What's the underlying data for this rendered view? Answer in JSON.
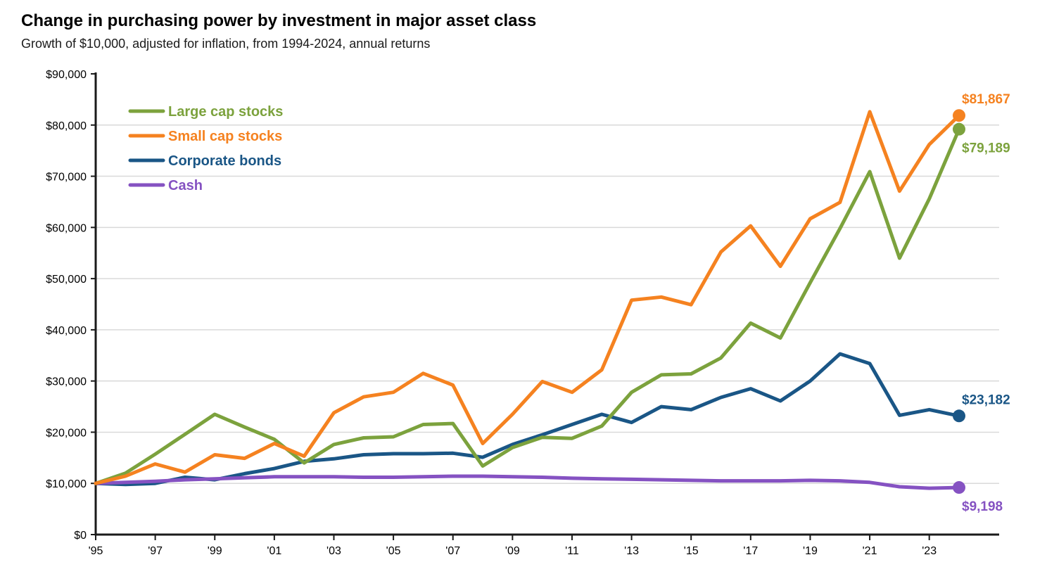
{
  "header": {
    "title": "Change in purchasing power by investment in major asset class",
    "subtitle": "Growth of $10,000, adjusted for inflation, from 1994-2024, annual returns"
  },
  "chart_data": {
    "type": "line",
    "title": "Change in purchasing power by investment in major asset class",
    "subtitle": "Growth of $10,000, adjusted for inflation, from 1994-2024, annual returns",
    "x": [
      1995,
      1996,
      1997,
      1998,
      1999,
      2000,
      2001,
      2002,
      2003,
      2004,
      2005,
      2006,
      2007,
      2008,
      2009,
      2010,
      2011,
      2012,
      2013,
      2014,
      2015,
      2016,
      2017,
      2018,
      2019,
      2020,
      2021,
      2022,
      2023,
      2024
    ],
    "x_tick_labels": [
      "'95",
      "'97",
      "'99",
      "'01",
      "'03",
      "'05",
      "'07",
      "'09",
      "'11",
      "'13",
      "'15",
      "'17",
      "'19",
      "'21",
      "'23"
    ],
    "x_tick_indices": [
      0,
      2,
      4,
      6,
      8,
      10,
      12,
      14,
      16,
      18,
      20,
      22,
      24,
      26,
      28
    ],
    "y_axis": {
      "min": 0,
      "max": 90000,
      "tick_step": 10000,
      "tick_labels": [
        "$0",
        "$10,000",
        "$20,000",
        "$30,000",
        "$40,000",
        "$50,000",
        "$60,000",
        "$70,000",
        "$80,000",
        "$90,000"
      ],
      "tick_values": [
        0,
        10000,
        20000,
        30000,
        40000,
        50000,
        60000,
        70000,
        80000,
        90000
      ]
    },
    "grid": "horizontal",
    "legend_position": "top-left-inside",
    "series": [
      {
        "name": "Large cap stocks",
        "color": "#7CA23D",
        "end_label": "$79,189",
        "end_label_side": "below",
        "values": [
          10000,
          12000,
          15700,
          19600,
          23500,
          21000,
          18600,
          14000,
          17600,
          18900,
          19100,
          21500,
          21700,
          13400,
          17000,
          19000,
          18800,
          21200,
          27800,
          31200,
          31400,
          34500,
          41300,
          38400,
          49200,
          59800,
          70900,
          54000,
          65600,
          79189
        ]
      },
      {
        "name": "Small cap stocks",
        "color": "#F58220",
        "end_label": "$81,867",
        "end_label_side": "above",
        "values": [
          10000,
          11400,
          13800,
          12200,
          15600,
          14900,
          17800,
          15300,
          23800,
          26900,
          27800,
          31500,
          29200,
          17800,
          23500,
          29900,
          27800,
          32200,
          45800,
          46400,
          44900,
          55200,
          60300,
          52400,
          61700,
          64900,
          82600,
          67100,
          76200,
          81867
        ]
      },
      {
        "name": "Corporate bonds",
        "color": "#1A5686",
        "end_label": "$23,182",
        "end_label_side": "above",
        "values": [
          10000,
          9800,
          10000,
          11200,
          10700,
          11900,
          12900,
          14300,
          14800,
          15600,
          15800,
          15800,
          15900,
          15100,
          17600,
          19500,
          21500,
          23500,
          21900,
          25000,
          24400,
          26800,
          28500,
          26100,
          30000,
          35300,
          33400,
          23300,
          24400,
          23182
        ]
      },
      {
        "name": "Cash",
        "color": "#8552C2",
        "end_label": "$9,198",
        "end_label_side": "below",
        "values": [
          10000,
          10200,
          10400,
          10700,
          10900,
          11100,
          11300,
          11300,
          11300,
          11200,
          11200,
          11300,
          11400,
          11400,
          11300,
          11200,
          11000,
          10900,
          10800,
          10700,
          10600,
          10500,
          10500,
          10500,
          10600,
          10500,
          10200,
          9350,
          9050,
          9198
        ]
      }
    ]
  },
  "style": {
    "axis_color": "#1a1a1a",
    "gridline_color": "#d9d9d9",
    "background_color": "#ffffff",
    "line_width": 5,
    "dot_radius": 9
  }
}
